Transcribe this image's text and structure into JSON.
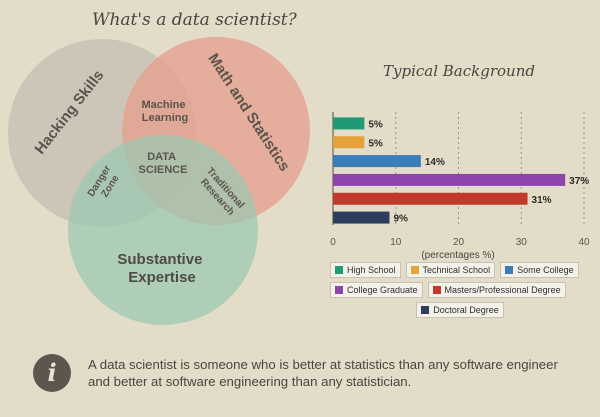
{
  "page": {
    "title": "What's a data scientist?",
    "quote": "A data scientist is someone who is better at statistics than any software engineer and better at software engineering than any statistician."
  },
  "venn": {
    "circles": [
      {
        "label": "Hacking Skills",
        "color": "#c7c0b3"
      },
      {
        "label": "Math and Statistics",
        "color": "#e6a08e"
      },
      {
        "label": "Substantive Expertise",
        "color": "#9ac9b2"
      }
    ],
    "overlaps": {
      "machine_learning": "Machine Learning",
      "danger_zone": "Danger Zone",
      "traditional_research": "Traditional Research",
      "center": "DATA SCIENCE"
    }
  },
  "chart_data": {
    "type": "bar",
    "orientation": "horizontal",
    "title": "Typical Background",
    "xlabel": "(percentages %)",
    "ylabel": "",
    "xlim": [
      0,
      40
    ],
    "xticks": [
      0,
      10,
      20,
      30,
      40
    ],
    "grid": "vertical dashed",
    "categories": [
      "High School",
      "Technical School",
      "Some College",
      "College Graduate",
      "Masters/Professional Degree",
      "Doctoral Degree"
    ],
    "values": [
      5,
      5,
      14,
      37,
      31,
      9
    ],
    "value_labels": [
      "5%",
      "5%",
      "14%",
      "37%",
      "31%",
      "9%"
    ],
    "colors": [
      "#1e9a74",
      "#e6a23a",
      "#3b7db8",
      "#8e44ad",
      "#c0392b",
      "#2c3e5c"
    ],
    "legend": "bottom"
  }
}
